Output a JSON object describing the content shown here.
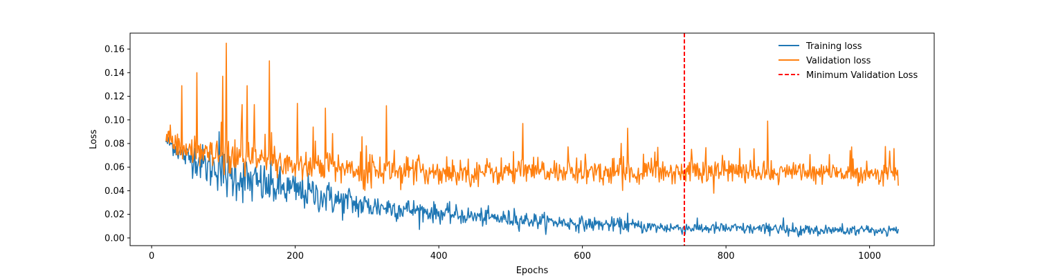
{
  "chart_data": {
    "type": "line",
    "title": "",
    "xlabel": "Epochs",
    "ylabel": "Loss",
    "xlim": [
      -30,
      1090
    ],
    "ylim": [
      -0.0065,
      0.1735
    ],
    "xticks": [
      0,
      200,
      400,
      600,
      800,
      1000
    ],
    "xtick_labels": [
      "0",
      "200",
      "400",
      "600",
      "800",
      "1000"
    ],
    "yticks": [
      0.0,
      0.02,
      0.04,
      0.06,
      0.08,
      0.1,
      0.12,
      0.14,
      0.16
    ],
    "ytick_labels": [
      "0.00",
      "0.02",
      "0.04",
      "0.06",
      "0.08",
      "0.10",
      "0.12",
      "0.14",
      "0.16"
    ],
    "grid": false,
    "legend_position": "top-right",
    "series": [
      {
        "name": "Training loss",
        "color": "#1f77b4",
        "style": "solid",
        "points": [
          [
            20,
            0.082
          ],
          [
            30,
            0.078
          ],
          [
            40,
            0.072
          ],
          [
            50,
            0.068
          ],
          [
            60,
            0.068
          ],
          [
            70,
            0.063
          ],
          [
            80,
            0.059
          ],
          [
            90,
            0.062
          ],
          [
            100,
            0.055
          ],
          [
            110,
            0.052
          ],
          [
            120,
            0.053
          ],
          [
            130,
            0.05
          ],
          [
            140,
            0.046
          ],
          [
            150,
            0.046
          ],
          [
            160,
            0.044
          ],
          [
            180,
            0.042
          ],
          [
            200,
            0.04
          ],
          [
            220,
            0.038
          ],
          [
            240,
            0.035
          ],
          [
            260,
            0.031
          ],
          [
            280,
            0.029
          ],
          [
            300,
            0.027
          ],
          [
            330,
            0.026
          ],
          [
            360,
            0.024
          ],
          [
            400,
            0.021
          ],
          [
            450,
            0.018
          ],
          [
            500,
            0.016
          ],
          [
            550,
            0.014
          ],
          [
            600,
            0.012
          ],
          [
            650,
            0.011
          ],
          [
            700,
            0.009
          ],
          [
            750,
            0.0085
          ],
          [
            800,
            0.008
          ],
          [
            850,
            0.0075
          ],
          [
            900,
            0.007
          ],
          [
            950,
            0.0065
          ],
          [
            1000,
            0.0062
          ],
          [
            1040,
            0.006
          ]
        ],
        "noise": [
          [
            20,
            0.003
          ],
          [
            100,
            0.011
          ],
          [
            200,
            0.008
          ],
          [
            300,
            0.006
          ],
          [
            400,
            0.004
          ],
          [
            600,
            0.003
          ],
          [
            800,
            0.0025
          ],
          [
            1040,
            0.0022
          ]
        ],
        "peaks": [
          [
            94,
            0.09
          ],
          [
            250,
            0.043
          ],
          [
            275,
            0.042
          ],
          [
            505,
            0.025
          ],
          [
            663,
            0.021
          ],
          [
            880,
            0.017
          ]
        ]
      },
      {
        "name": "Validation loss",
        "color": "#ff7f0e",
        "style": "solid",
        "points": [
          [
            20,
            0.085
          ],
          [
            40,
            0.075
          ],
          [
            60,
            0.072
          ],
          [
            80,
            0.07
          ],
          [
            100,
            0.068
          ],
          [
            120,
            0.067
          ],
          [
            140,
            0.066
          ],
          [
            160,
            0.065
          ],
          [
            180,
            0.064
          ],
          [
            200,
            0.062
          ],
          [
            250,
            0.06
          ],
          [
            300,
            0.058
          ],
          [
            400,
            0.056
          ],
          [
            500,
            0.056
          ],
          [
            600,
            0.056
          ],
          [
            700,
            0.056
          ],
          [
            800,
            0.057
          ],
          [
            900,
            0.055
          ],
          [
            1000,
            0.055
          ],
          [
            1040,
            0.055
          ]
        ],
        "noise": [
          [
            20,
            0.005
          ],
          [
            150,
            0.008
          ],
          [
            300,
            0.006
          ],
          [
            500,
            0.0055
          ],
          [
            800,
            0.005
          ],
          [
            1040,
            0.0045
          ]
        ],
        "peaks": [
          [
            42,
            0.129
          ],
          [
            63,
            0.14
          ],
          [
            99,
            0.137
          ],
          [
            104,
            0.165
          ],
          [
            126,
            0.113
          ],
          [
            133,
            0.129
          ],
          [
            143,
            0.113
          ],
          [
            164,
            0.15
          ],
          [
            203,
            0.114
          ],
          [
            242,
            0.11
          ],
          [
            327,
            0.112
          ],
          [
            517,
            0.097
          ],
          [
            663,
            0.093
          ],
          [
            858,
            0.099
          ]
        ]
      },
      {
        "name": "Minimum Validation Loss",
        "color": "#ff0000",
        "style": "dashed",
        "vline_x": 742
      }
    ]
  }
}
